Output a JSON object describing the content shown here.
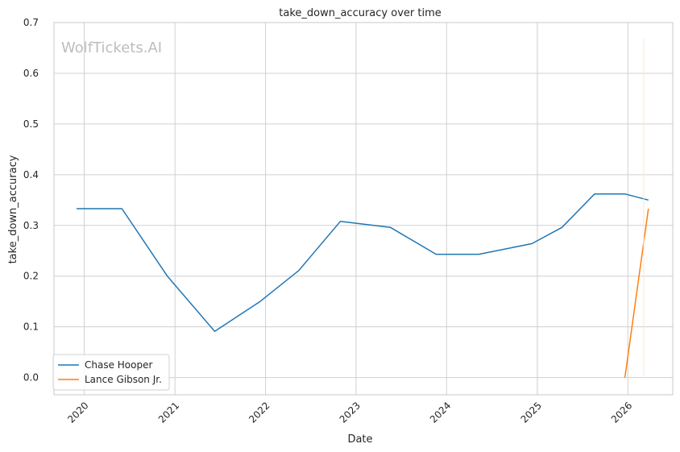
{
  "watermark": "WolfTickets.AI",
  "colors": {
    "chase": "#1f77b4",
    "lance": "#ff7f0e",
    "grid": "#d0d0d0",
    "frame": "#c8c8c8"
  },
  "chart_data": {
    "type": "line",
    "title": "take_down_accuracy over time",
    "xlabel": "Date",
    "ylabel": "take_down_accuracy",
    "xlim": [
      "2019-09-01",
      "2026-07-01"
    ],
    "ylim": [
      -0.034,
      0.7
    ],
    "x_ticks": [
      "2020",
      "2021",
      "2022",
      "2023",
      "2024",
      "2025",
      "2026"
    ],
    "y_ticks": [
      "0.0",
      "0.1",
      "0.2",
      "0.3",
      "0.4",
      "0.5",
      "0.6",
      "0.7"
    ],
    "grid": true,
    "legend_position": "lower-left",
    "series": [
      {
        "name": "Chase Hooper",
        "points": [
          {
            "x": "2019-12-01",
            "y": 0.333
          },
          {
            "x": "2020-06-01",
            "y": 0.333
          },
          {
            "x": "2020-12-01",
            "y": 0.2
          },
          {
            "x": "2021-06-10",
            "y": 0.091
          },
          {
            "x": "2021-12-10",
            "y": 0.15
          },
          {
            "x": "2022-05-15",
            "y": 0.211
          },
          {
            "x": "2022-10-30",
            "y": 0.308
          },
          {
            "x": "2023-05-20",
            "y": 0.296
          },
          {
            "x": "2023-11-20",
            "y": 0.243
          },
          {
            "x": "2024-05-10",
            "y": 0.243
          },
          {
            "x": "2024-12-10",
            "y": 0.264
          },
          {
            "x": "2025-04-10",
            "y": 0.296
          },
          {
            "x": "2025-08-20",
            "y": 0.362
          },
          {
            "x": "2025-12-20",
            "y": 0.362
          },
          {
            "x": "2026-03-25",
            "y": 0.35
          }
        ]
      },
      {
        "name": "Lance Gibson Jr.",
        "points": [
          {
            "x": "2025-12-20",
            "y": 0.0
          },
          {
            "x": "2026-03-25",
            "y": 0.333
          }
        ]
      }
    ]
  }
}
